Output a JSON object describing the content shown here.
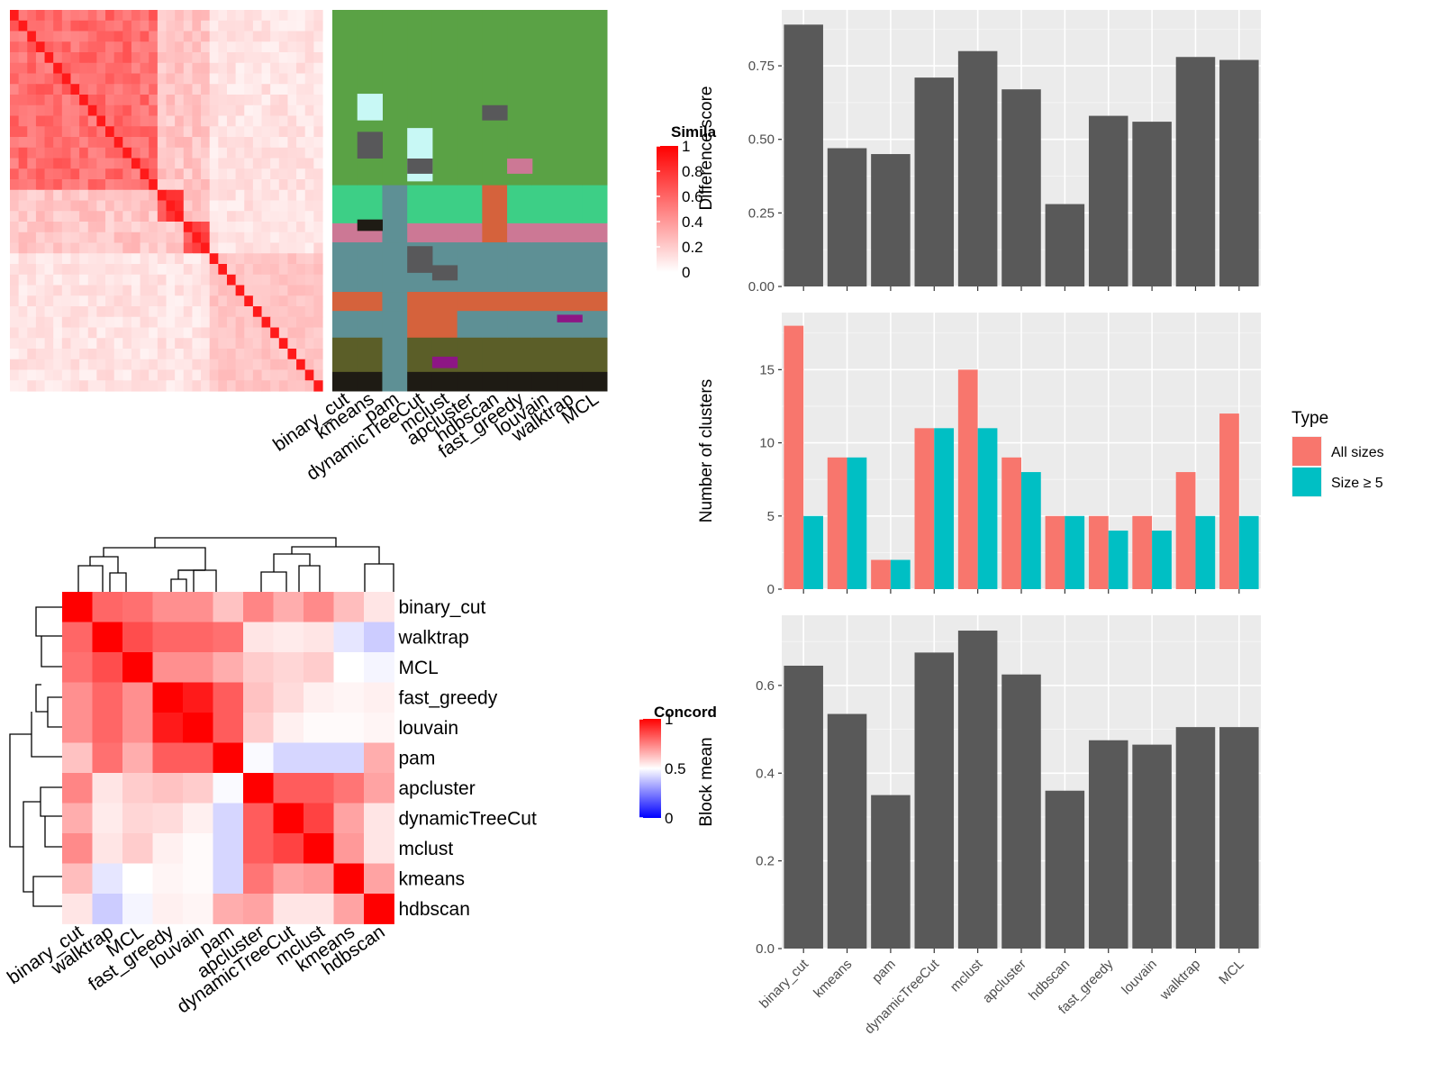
{
  "methods_heatmap_order": [
    "binary_cut",
    "kmeans",
    "pam",
    "dynamicTreeCut",
    "mclust",
    "apcluster",
    "hdbscan",
    "fast_greedy",
    "louvain",
    "walktrap",
    "MCL"
  ],
  "similarity_legend": {
    "title": "Simila",
    "ticks": [
      "1",
      "0.8",
      "0.6",
      "0.4",
      "0.2",
      "0"
    ],
    "tick_values": [
      1,
      0.8,
      0.6,
      0.4,
      0.2,
      0
    ],
    "colors": [
      "#ffffff",
      "#ff0000"
    ]
  },
  "cluster_label_colors": {
    "green": "#5aa245",
    "teal": "#5e9095",
    "olive": "#5b5e28",
    "pink": "#cc7895",
    "orange": "#d5623c",
    "light": "#c8f8f5",
    "mint": "#3dcf86",
    "dark": "#1e1b14",
    "gray": "#58585a",
    "purple": "#8d1685"
  },
  "concordance_legend": {
    "title": "Concord",
    "ticks": [
      "1",
      "0.5",
      "0"
    ],
    "tick_values": [
      1,
      0.5,
      0
    ],
    "colors": [
      "#0000ff",
      "#ffffff",
      "#ff0000"
    ]
  },
  "concordance_order": [
    "binary_cut",
    "walktrap",
    "MCL",
    "fast_greedy",
    "louvain",
    "pam",
    "apcluster",
    "dynamicTreeCut",
    "mclust",
    "kmeans",
    "hdbscan"
  ],
  "concordance_matrix": [
    [
      1.0,
      0.8,
      0.78,
      0.72,
      0.72,
      0.62,
      0.74,
      0.66,
      0.73,
      0.63,
      0.55
    ],
    [
      0.8,
      1.0,
      0.85,
      0.8,
      0.8,
      0.78,
      0.55,
      0.54,
      0.55,
      0.45,
      0.4
    ],
    [
      0.78,
      0.85,
      1.0,
      0.72,
      0.72,
      0.66,
      0.6,
      0.58,
      0.6,
      0.5,
      0.48
    ],
    [
      0.72,
      0.8,
      0.72,
      1.0,
      0.95,
      0.82,
      0.62,
      0.57,
      0.53,
      0.52,
      0.53
    ],
    [
      0.72,
      0.8,
      0.72,
      0.95,
      1.0,
      0.82,
      0.6,
      0.53,
      0.51,
      0.51,
      0.52
    ],
    [
      0.62,
      0.78,
      0.66,
      0.82,
      0.82,
      1.0,
      0.49,
      0.42,
      0.42,
      0.42,
      0.66
    ],
    [
      0.74,
      0.55,
      0.6,
      0.62,
      0.6,
      0.49,
      1.0,
      0.82,
      0.82,
      0.77,
      0.68
    ],
    [
      0.66,
      0.54,
      0.58,
      0.57,
      0.53,
      0.42,
      0.82,
      1.0,
      0.87,
      0.68,
      0.55
    ],
    [
      0.73,
      0.55,
      0.6,
      0.53,
      0.51,
      0.42,
      0.82,
      0.87,
      1.0,
      0.7,
      0.55
    ],
    [
      0.63,
      0.45,
      0.5,
      0.52,
      0.51,
      0.42,
      0.77,
      0.68,
      0.7,
      1.0,
      0.68
    ],
    [
      0.55,
      0.4,
      0.48,
      0.53,
      0.52,
      0.66,
      0.68,
      0.55,
      0.55,
      0.68,
      1.0
    ]
  ],
  "chart_data": [
    {
      "type": "bar",
      "categories": [
        "binary_cut",
        "kmeans",
        "pam",
        "dynamicTreeCut",
        "mclust",
        "apcluster",
        "hdbscan",
        "fast_greedy",
        "louvain",
        "walktrap",
        "MCL"
      ],
      "values": [
        0.89,
        0.47,
        0.45,
        0.71,
        0.8,
        0.67,
        0.28,
        0.58,
        0.56,
        0.78,
        0.77
      ],
      "ylabel": "Difference score",
      "ylim": [
        0,
        0.94
      ],
      "yticks": [
        0,
        0.25,
        0.5,
        0.75
      ],
      "ytick_labels": [
        "0.00",
        "0.25",
        "0.50",
        "0.75"
      ],
      "bar_color": "#595959"
    },
    {
      "type": "bar",
      "categories": [
        "binary_cut",
        "kmeans",
        "pam",
        "dynamicTreeCut",
        "mclust",
        "apcluster",
        "hdbscan",
        "fast_greedy",
        "louvain",
        "walktrap",
        "MCL"
      ],
      "series": [
        {
          "name": "All sizes",
          "values": [
            18,
            9,
            2,
            11,
            15,
            9,
            5,
            5,
            5,
            8,
            12
          ],
          "color": "#f8766d"
        },
        {
          "name": "Size ≥ 5",
          "values": [
            5,
            9,
            2,
            11,
            11,
            8,
            5,
            4,
            4,
            5,
            5
          ],
          "color": "#00bfc4"
        }
      ],
      "ylabel": "Number of clusters",
      "ylim": [
        0,
        18.9
      ],
      "yticks": [
        0,
        5,
        10,
        15
      ],
      "ytick_labels": [
        "0",
        "5",
        "10",
        "15"
      ],
      "legend_title": "Type",
      "legend_position": "right"
    },
    {
      "type": "bar",
      "categories": [
        "binary_cut",
        "kmeans",
        "pam",
        "dynamicTreeCut",
        "mclust",
        "apcluster",
        "hdbscan",
        "fast_greedy",
        "louvain",
        "walktrap",
        "MCL"
      ],
      "values": [
        0.645,
        0.535,
        0.35,
        0.675,
        0.725,
        0.625,
        0.36,
        0.475,
        0.465,
        0.505,
        0.505
      ],
      "ylabel": "Block mean",
      "ylim": [
        0,
        0.76
      ],
      "yticks": [
        0,
        0.2,
        0.4,
        0.6
      ],
      "ytick_labels": [
        "0.0",
        "0.2",
        "0.4",
        "0.6"
      ],
      "bar_color": "#595959"
    }
  ]
}
